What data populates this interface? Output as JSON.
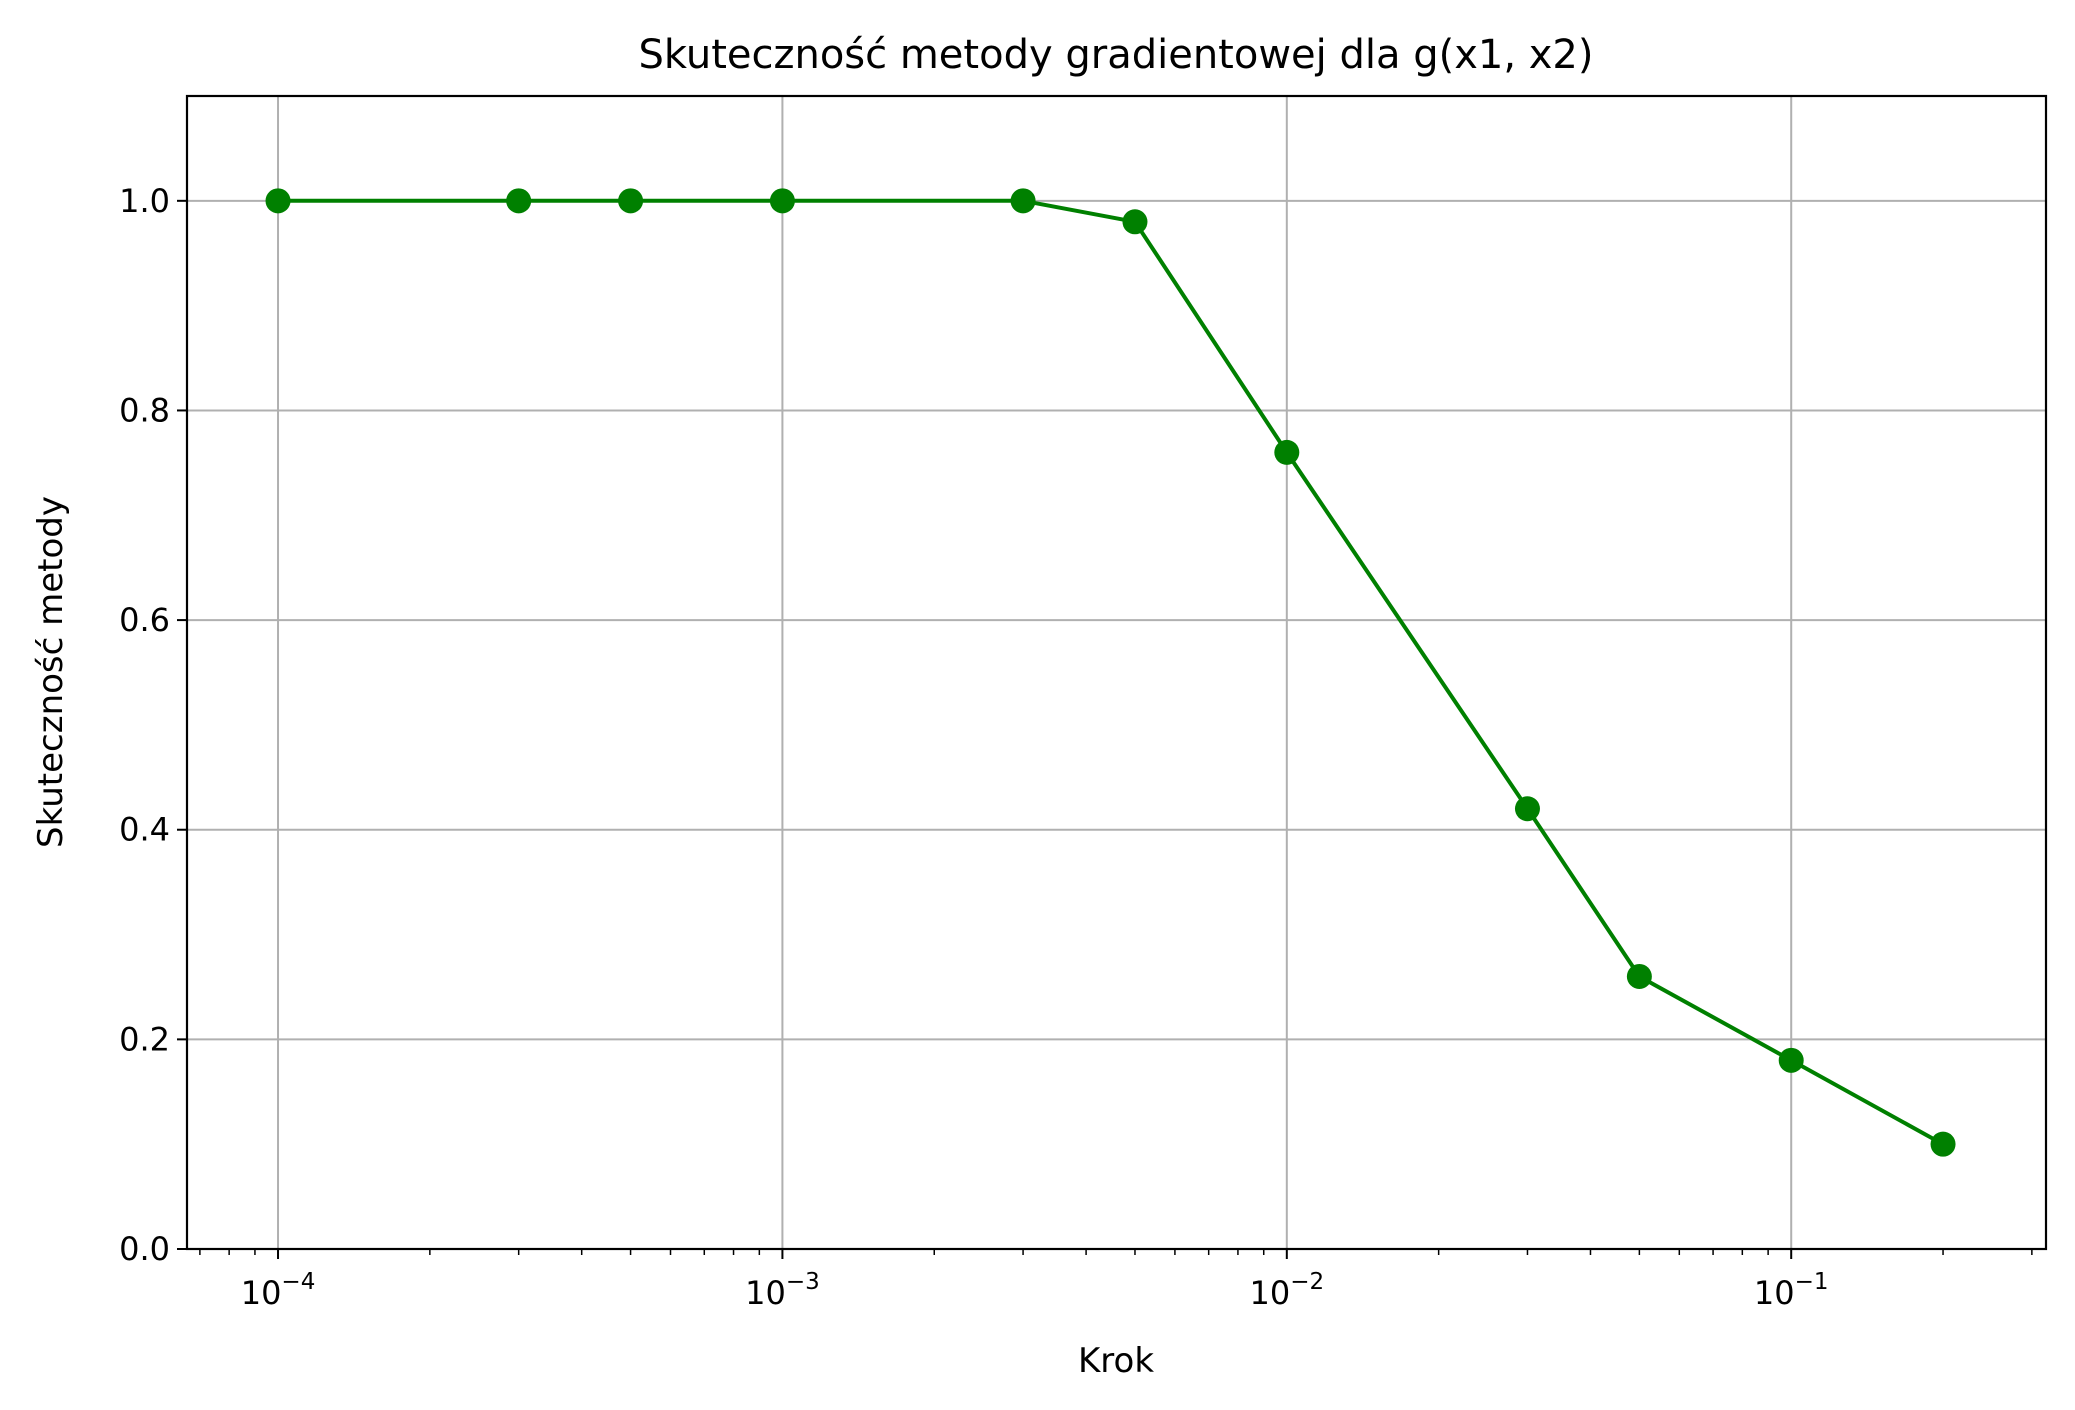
{
  "chart_data": {
    "type": "line",
    "title": "Skuteczność metody gradientowej dla g(x1, x2)",
    "xlabel": "Krok",
    "ylabel": "Skuteczność metody",
    "x_scale": "log",
    "xlim": [
      6.6e-05,
      0.32
    ],
    "ylim": [
      0,
      1.1
    ],
    "grid": true,
    "x_ticks": [
      {
        "value": 0.0001,
        "base": "10",
        "exponent": "−4"
      },
      {
        "value": 0.001,
        "base": "10",
        "exponent": "−3"
      },
      {
        "value": 0.01,
        "base": "10",
        "exponent": "−2"
      },
      {
        "value": 0.1,
        "base": "10",
        "exponent": "−1"
      }
    ],
    "y_ticks": [
      {
        "value": 0.0,
        "label": "0.0"
      },
      {
        "value": 0.2,
        "label": "0.2"
      },
      {
        "value": 0.4,
        "label": "0.4"
      },
      {
        "value": 0.6,
        "label": "0.6"
      },
      {
        "value": 0.8,
        "label": "0.8"
      },
      {
        "value": 1.0,
        "label": "1.0"
      }
    ],
    "series": [
      {
        "color": "#008000",
        "marker": "circle",
        "x": [
          0.0001,
          0.0003,
          0.0005,
          0.001,
          0.003,
          0.005,
          0.01,
          0.03,
          0.05,
          0.1,
          0.2
        ],
        "y": [
          1.0,
          1.0,
          1.0,
          1.0,
          1.0,
          0.98,
          0.76,
          0.42,
          0.26,
          0.18,
          0.1
        ]
      }
    ]
  }
}
